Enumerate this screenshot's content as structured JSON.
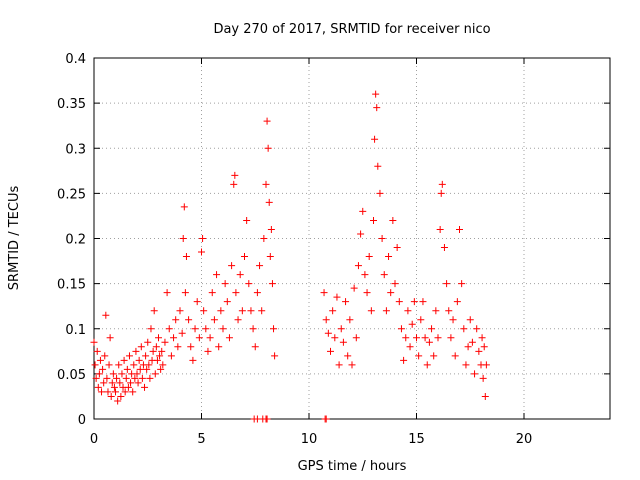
{
  "chart_data": {
    "type": "scatter",
    "title": "Day 270 of 2017, SRMTID for receiver nico",
    "xlabel": "GPS time / hours",
    "ylabel": "SRMTID / TECUs",
    "xlim": [
      0,
      24
    ],
    "ylim": [
      0,
      0.4
    ],
    "x_ticks": [
      0,
      5,
      10,
      15,
      20
    ],
    "x_tick_labels": [
      "0",
      "5",
      "10",
      "15",
      "20"
    ],
    "y_ticks": [
      0,
      0.05,
      0.1,
      0.15,
      0.2,
      0.25,
      0.3,
      0.35,
      0.4
    ],
    "y_tick_labels": [
      "0",
      "0.05",
      "0.1",
      "0.15",
      "0.2",
      "0.25",
      "0.3",
      "0.35",
      "0.4"
    ],
    "grid": true,
    "marker": "plus",
    "color": "#ff0000",
    "series": [
      {
        "points": [
          [
            0.0,
            0.085
          ],
          [
            0.05,
            0.06
          ],
          [
            0.1,
            0.045
          ],
          [
            0.15,
            0.075
          ],
          [
            0.2,
            0.035
          ],
          [
            0.25,
            0.05
          ],
          [
            0.3,
            0.065
          ],
          [
            0.35,
            0.03
          ],
          [
            0.4,
            0.055
          ],
          [
            0.45,
            0.04
          ],
          [
            0.5,
            0.07
          ],
          [
            0.55,
            0.115
          ],
          [
            0.6,
            0.045
          ],
          [
            0.65,
            0.03
          ],
          [
            0.7,
            0.06
          ],
          [
            0.75,
            0.09
          ],
          [
            0.8,
            0.025
          ],
          [
            0.85,
            0.04
          ],
          [
            0.9,
            0.05
          ],
          [
            0.95,
            0.035
          ],
          [
            1.0,
            0.03
          ],
          [
            1.05,
            0.045
          ],
          [
            1.1,
            0.02
          ],
          [
            1.15,
            0.06
          ],
          [
            1.2,
            0.04
          ],
          [
            1.25,
            0.025
          ],
          [
            1.3,
            0.05
          ],
          [
            1.35,
            0.035
          ],
          [
            1.4,
            0.065
          ],
          [
            1.45,
            0.03
          ],
          [
            1.5,
            0.045
          ],
          [
            1.55,
            0.055
          ],
          [
            1.6,
            0.035
          ],
          [
            1.65,
            0.07
          ],
          [
            1.7,
            0.04
          ],
          [
            1.75,
            0.05
          ],
          [
            1.8,
            0.03
          ],
          [
            1.85,
            0.06
          ],
          [
            1.9,
            0.045
          ],
          [
            1.95,
            0.075
          ],
          [
            2.0,
            0.05
          ],
          [
            2.05,
            0.04
          ],
          [
            2.1,
            0.065
          ],
          [
            2.15,
            0.055
          ],
          [
            2.2,
            0.08
          ],
          [
            2.25,
            0.045
          ],
          [
            2.3,
            0.06
          ],
          [
            2.35,
            0.035
          ],
          [
            2.4,
            0.07
          ],
          [
            2.45,
            0.055
          ],
          [
            2.5,
            0.085
          ],
          [
            2.55,
            0.06
          ],
          [
            2.6,
            0.045
          ],
          [
            2.65,
            0.1
          ],
          [
            2.7,
            0.065
          ],
          [
            2.75,
            0.075
          ],
          [
            2.8,
            0.12
          ],
          [
            2.85,
            0.05
          ],
          [
            2.9,
            0.08
          ],
          [
            2.95,
            0.065
          ],
          [
            3.0,
            0.09
          ],
          [
            3.05,
            0.07
          ],
          [
            3.1,
            0.055
          ],
          [
            3.15,
            0.075
          ],
          [
            3.2,
            0.06
          ],
          [
            3.3,
            0.085
          ],
          [
            3.4,
            0.14
          ],
          [
            3.5,
            0.1
          ],
          [
            3.6,
            0.07
          ],
          [
            3.7,
            0.09
          ],
          [
            3.8,
            0.11
          ],
          [
            3.9,
            0.08
          ],
          [
            4.0,
            0.12
          ],
          [
            4.1,
            0.095
          ],
          [
            4.15,
            0.2
          ],
          [
            4.2,
            0.235
          ],
          [
            4.25,
            0.14
          ],
          [
            4.3,
            0.18
          ],
          [
            4.4,
            0.11
          ],
          [
            4.5,
            0.08
          ],
          [
            4.6,
            0.065
          ],
          [
            4.7,
            0.1
          ],
          [
            4.8,
            0.13
          ],
          [
            4.9,
            0.09
          ],
          [
            5.0,
            0.185
          ],
          [
            5.05,
            0.2
          ],
          [
            5.1,
            0.12
          ],
          [
            5.2,
            0.1
          ],
          [
            5.3,
            0.075
          ],
          [
            5.4,
            0.09
          ],
          [
            5.5,
            0.14
          ],
          [
            5.6,
            0.11
          ],
          [
            5.7,
            0.16
          ],
          [
            5.8,
            0.08
          ],
          [
            5.9,
            0.12
          ],
          [
            6.0,
            0.1
          ],
          [
            6.1,
            0.15
          ],
          [
            6.2,
            0.13
          ],
          [
            6.3,
            0.09
          ],
          [
            6.4,
            0.17
          ],
          [
            6.5,
            0.26
          ],
          [
            6.55,
            0.27
          ],
          [
            6.6,
            0.14
          ],
          [
            6.7,
            0.11
          ],
          [
            6.8,
            0.16
          ],
          [
            6.9,
            0.12
          ],
          [
            7.0,
            0.18
          ],
          [
            7.1,
            0.22
          ],
          [
            7.2,
            0.15
          ],
          [
            7.3,
            0.12
          ],
          [
            7.4,
            0.1
          ],
          [
            7.5,
            0.08
          ],
          [
            7.6,
            0.14
          ],
          [
            7.7,
            0.17
          ],
          [
            7.8,
            0.12
          ],
          [
            7.9,
            0.2
          ],
          [
            8.0,
            0.26
          ],
          [
            8.05,
            0.33
          ],
          [
            8.1,
            0.3
          ],
          [
            8.15,
            0.24
          ],
          [
            8.2,
            0.18
          ],
          [
            8.25,
            0.21
          ],
          [
            8.3,
            0.15
          ],
          [
            8.35,
            0.1
          ],
          [
            8.4,
            0.07
          ],
          [
            10.7,
            0.14
          ],
          [
            10.8,
            0.11
          ],
          [
            10.9,
            0.095
          ],
          [
            11.0,
            0.075
          ],
          [
            11.1,
            0.12
          ],
          [
            11.2,
            0.09
          ],
          [
            11.3,
            0.135
          ],
          [
            11.4,
            0.06
          ],
          [
            11.5,
            0.1
          ],
          [
            11.6,
            0.085
          ],
          [
            11.7,
            0.13
          ],
          [
            11.8,
            0.07
          ],
          [
            11.9,
            0.11
          ],
          [
            12.0,
            0.06
          ],
          [
            12.1,
            0.145
          ],
          [
            12.2,
            0.09
          ],
          [
            12.3,
            0.17
          ],
          [
            12.4,
            0.205
          ],
          [
            12.5,
            0.23
          ],
          [
            12.6,
            0.16
          ],
          [
            12.7,
            0.14
          ],
          [
            12.8,
            0.18
          ],
          [
            12.9,
            0.12
          ],
          [
            13.0,
            0.22
          ],
          [
            13.05,
            0.31
          ],
          [
            13.1,
            0.36
          ],
          [
            13.15,
            0.345
          ],
          [
            13.2,
            0.28
          ],
          [
            13.3,
            0.25
          ],
          [
            13.4,
            0.2
          ],
          [
            13.5,
            0.16
          ],
          [
            13.6,
            0.12
          ],
          [
            13.7,
            0.18
          ],
          [
            13.8,
            0.14
          ],
          [
            13.9,
            0.22
          ],
          [
            14.0,
            0.15
          ],
          [
            14.1,
            0.19
          ],
          [
            14.2,
            0.13
          ],
          [
            14.3,
            0.1
          ],
          [
            14.4,
            0.065
          ],
          [
            14.5,
            0.09
          ],
          [
            14.6,
            0.12
          ],
          [
            14.7,
            0.08
          ],
          [
            14.8,
            0.105
          ],
          [
            14.9,
            0.13
          ],
          [
            15.0,
            0.09
          ],
          [
            15.1,
            0.07
          ],
          [
            15.2,
            0.11
          ],
          [
            15.3,
            0.13
          ],
          [
            15.4,
            0.09
          ],
          [
            15.5,
            0.06
          ],
          [
            15.6,
            0.085
          ],
          [
            15.7,
            0.1
          ],
          [
            15.8,
            0.07
          ],
          [
            15.9,
            0.12
          ],
          [
            16.0,
            0.09
          ],
          [
            16.1,
            0.21
          ],
          [
            16.15,
            0.25
          ],
          [
            16.2,
            0.26
          ],
          [
            16.3,
            0.19
          ],
          [
            16.4,
            0.15
          ],
          [
            16.5,
            0.12
          ],
          [
            16.6,
            0.09
          ],
          [
            16.7,
            0.11
          ],
          [
            16.8,
            0.07
          ],
          [
            16.9,
            0.13
          ],
          [
            17.0,
            0.21
          ],
          [
            17.1,
            0.15
          ],
          [
            17.2,
            0.1
          ],
          [
            17.3,
            0.06
          ],
          [
            17.4,
            0.08
          ],
          [
            17.5,
            0.11
          ],
          [
            17.6,
            0.085
          ],
          [
            17.7,
            0.05
          ],
          [
            17.8,
            0.1
          ],
          [
            17.9,
            0.075
          ],
          [
            18.0,
            0.06
          ],
          [
            18.05,
            0.09
          ],
          [
            18.1,
            0.045
          ],
          [
            18.15,
            0.08
          ],
          [
            18.2,
            0.025
          ],
          [
            18.25,
            0.06
          ]
        ]
      }
    ],
    "baseline_markers": [
      [
        7.45,
        0.0
      ],
      [
        7.6,
        0.0
      ],
      [
        7.85,
        0.0
      ],
      [
        8.0,
        0.0
      ],
      [
        8.05,
        0.0
      ],
      [
        10.75,
        0.0
      ],
      [
        10.8,
        0.0
      ]
    ]
  }
}
